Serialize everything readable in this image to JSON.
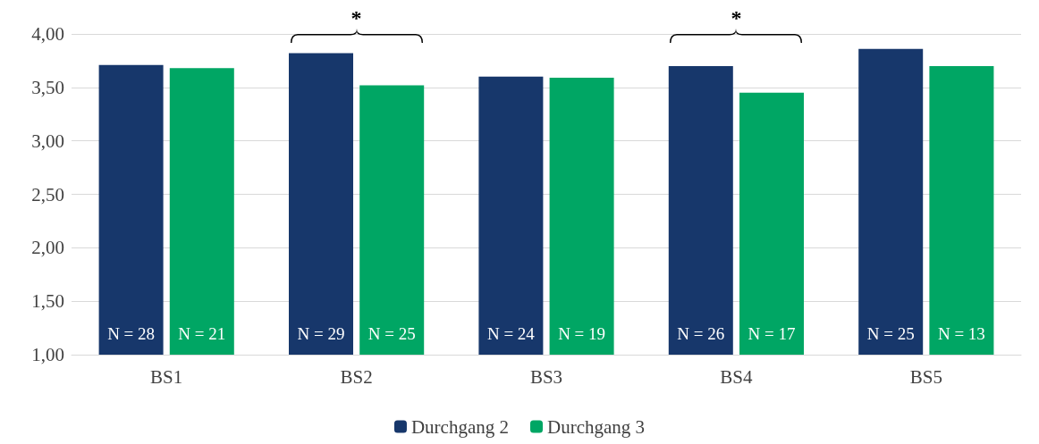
{
  "chart_data": {
    "type": "bar",
    "categories": [
      "BS1",
      "BS2",
      "BS3",
      "BS4",
      "BS5"
    ],
    "series": [
      {
        "name": "Durchgang 2",
        "color": "#17376b",
        "values": [
          3.71,
          3.82,
          3.6,
          3.7,
          3.86
        ]
      },
      {
        "name": "Durchgang 3",
        "color": "#00a664",
        "values": [
          3.68,
          3.52,
          3.59,
          3.45,
          3.7
        ]
      }
    ],
    "ylim": [
      1,
      4
    ],
    "yticks": [
      {
        "value": 1,
        "label": "1,00"
      },
      {
        "value": 1.5,
        "label": "1,50"
      },
      {
        "value": 2,
        "label": "2,00"
      },
      {
        "value": 2.5,
        "label": "2,50"
      },
      {
        "value": 3,
        "label": "3,00"
      },
      {
        "value": 3.5,
        "label": "3,50"
      },
      {
        "value": 4,
        "label": "4,00"
      }
    ],
    "grid": "y",
    "legend": "bottom",
    "annotations": [
      "*",
      "*",
      "N = 28",
      "N = 21",
      "N = 29",
      "N = 25",
      "N = 24",
      "N = 19",
      "N = 26",
      "N = 17",
      "N = 25",
      "N = 13"
    ]
  }
}
